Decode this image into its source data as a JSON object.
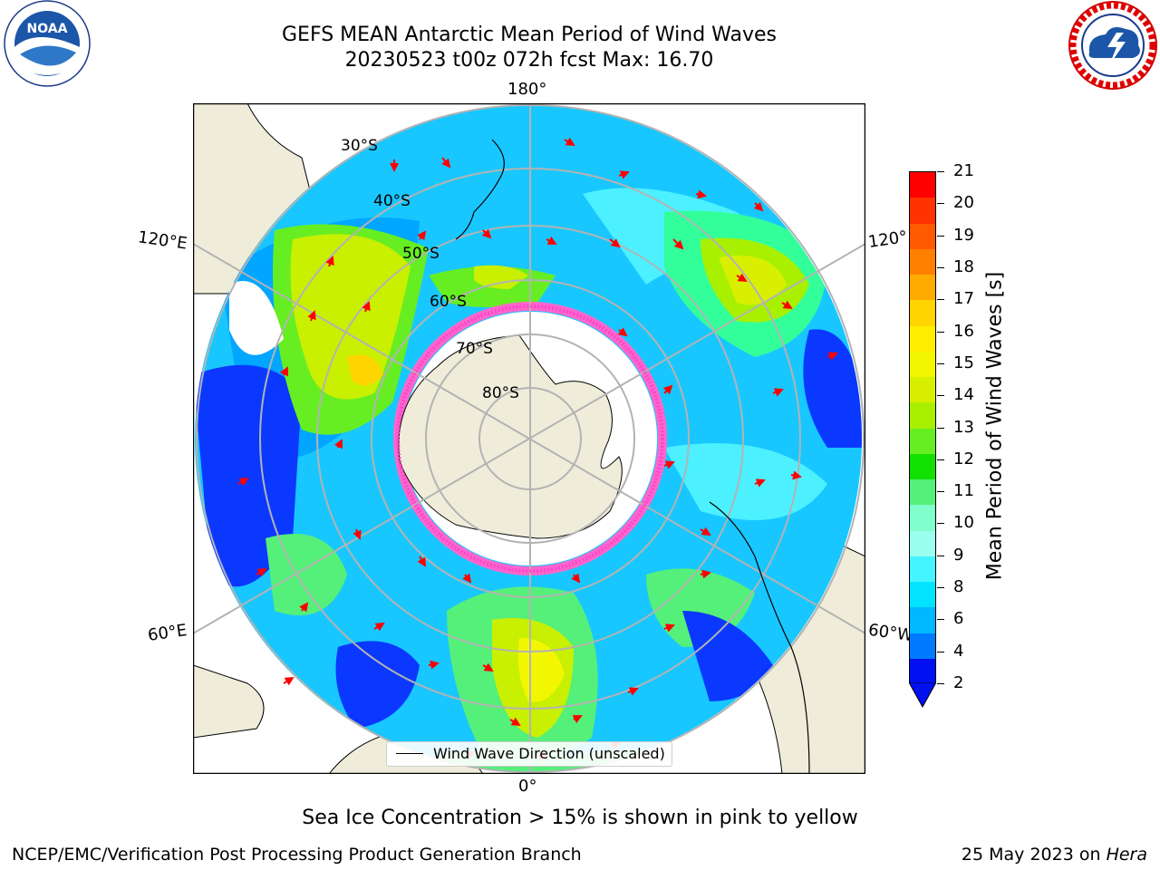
{
  "header": {
    "title_line1": "GEFS MEAN Antarctic Mean Period of Wind Waves",
    "title_line2": "20230523 t00z 072h fcst   Max: 16.70"
  },
  "logos": {
    "left": "noaa-logo",
    "left_text": "NOAA",
    "right": "national-weather-service-logo"
  },
  "map": {
    "projection": "south-polar-stereographic",
    "longitude_labels": {
      "top": "180°",
      "bottom": "0°",
      "upper_left": "120°E",
      "lower_left": "60°E",
      "upper_right": "120°",
      "lower_right": "60°W"
    },
    "latitude_labels": [
      "30°S",
      "40°S",
      "50°S",
      "60°S",
      "70°S",
      "80°S"
    ],
    "colors": {
      "land": "#efedda",
      "sea_ice": "#ff66cc",
      "arrows": "#ff0000",
      "gridlines": "#b3b3b3"
    }
  },
  "legend": {
    "text": "Wind Wave Direction (unscaled)"
  },
  "colorbar": {
    "label": "Mean Period of Wind Waves [s]",
    "ticks": [
      "21",
      "20",
      "19",
      "18",
      "17",
      "16",
      "15",
      "14",
      "13",
      "12",
      "11",
      "10",
      "9",
      "8",
      "6",
      "4",
      "2"
    ],
    "extend": "min",
    "colors": [
      "#ff0000",
      "#ff3300",
      "#ff5a00",
      "#ff8000",
      "#ffaa00",
      "#ffd400",
      "#ffee00",
      "#f2f700",
      "#d8f000",
      "#a8f000",
      "#66ee22",
      "#11e000",
      "#55f07a",
      "#80ffcc",
      "#9bfff0",
      "#44f4ff",
      "#00e4ff",
      "#00b8ff",
      "#007aff",
      "#0010f0"
    ]
  },
  "footer": {
    "note": "Sea Ice Concentration > 15% is shown in pink to yellow",
    "left": "NCEP/EMC/Verification Post Processing Product Generation Branch",
    "right_date": "25 May 2023 on ",
    "right_host": "Hera"
  }
}
